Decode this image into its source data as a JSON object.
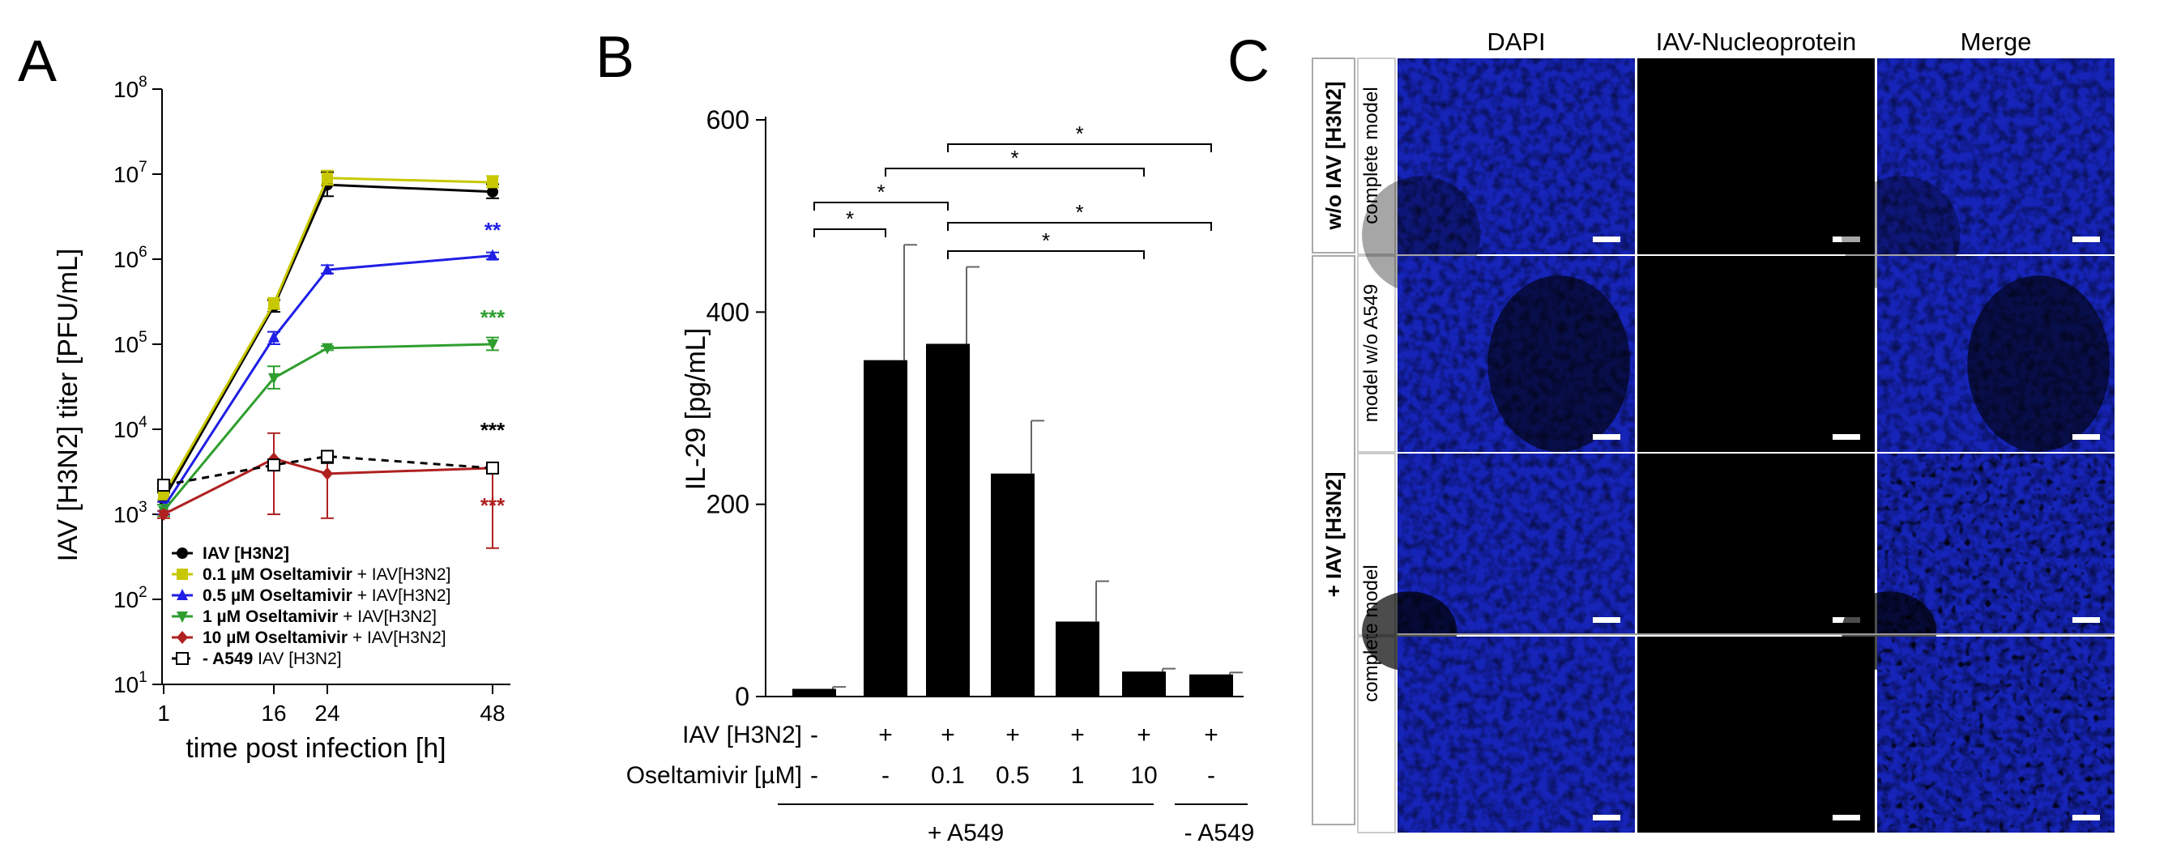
{
  "panels": {
    "A": {
      "letter": "A"
    },
    "B": {
      "letter": "B"
    },
    "C": {
      "letter": "C"
    }
  },
  "chart_data": [
    {
      "panel": "A",
      "type": "line",
      "x": [
        1,
        16,
        24,
        48
      ],
      "xlabel": "time post infection [h]",
      "ylabel": "IAV [H3N2] titer [PFU/mL]",
      "yscale": "log",
      "ylim": [
        10,
        100000000
      ],
      "yticks": [
        {
          "base": "10",
          "exp": "1"
        },
        {
          "base": "10",
          "exp": "2"
        },
        {
          "base": "10",
          "exp": "3"
        },
        {
          "base": "10",
          "exp": "4"
        },
        {
          "base": "10",
          "exp": "5"
        },
        {
          "base": "10",
          "exp": "6"
        },
        {
          "base": "10",
          "exp": "7"
        },
        {
          "base": "10",
          "exp": "8"
        }
      ],
      "xticks": [
        "1",
        "16",
        "24",
        "48"
      ],
      "series": [
        {
          "name_bold": "IAV [H3N2]",
          "name_rest": "",
          "color": "#000000",
          "marker": "circle",
          "dashed": false,
          "values": [
            1500,
            280000,
            7500000,
            6200000
          ],
          "err_hi": [
            1800,
            330000,
            10500000,
            7600000
          ],
          "err_lo": [
            1300,
            240000,
            5500000,
            5200000
          ]
        },
        {
          "name_bold": "0.1 µM Oseltamivir",
          "name_rest": " + IAV[H3N2]",
          "color": "#c8c800",
          "marker": "square",
          "dashed": false,
          "values": [
            1700,
            300000,
            9000000,
            8000000
          ],
          "err_hi": [
            2000,
            350000,
            11000000,
            9500000
          ],
          "err_lo": [
            1500,
            260000,
            7500000,
            7000000
          ]
        },
        {
          "name_bold": "0.5 µM Oseltamivir",
          "name_rest": " + IAV[H3N2]",
          "color": "#1f1fe6",
          "marker": "triangle",
          "dashed": false,
          "values": [
            1200,
            120000,
            750000,
            1100000
          ],
          "err_hi": [
            1400,
            140000,
            850000,
            1200000
          ],
          "err_lo": [
            1000,
            100000,
            680000,
            1000000
          ]
        },
        {
          "name_bold": "1 µM Oseltamivir",
          "name_rest": " + IAV[H3N2]",
          "color": "#2e9e2e",
          "marker": "triangle-down",
          "dashed": false,
          "values": [
            1100,
            40000,
            90000,
            100000
          ],
          "err_hi": [
            1300,
            55000,
            95000,
            120000
          ],
          "err_lo": [
            950,
            30000,
            85000,
            85000
          ]
        },
        {
          "name_bold": "10 µM Oseltamivir",
          "name_rest": " + IAV[H3N2]",
          "color": "#b02020",
          "marker": "diamond",
          "dashed": false,
          "values": [
            1000,
            4500,
            3000,
            3500
          ],
          "err_hi": [
            1100,
            9000,
            4500,
            3700
          ],
          "err_lo": [
            900,
            1000,
            900,
            400
          ]
        },
        {
          "name_bold": "- A549",
          "name_rest": " IAV [H3N2]",
          "color": "#000000",
          "marker": "open-square",
          "dashed": true,
          "values": [
            2200,
            3800,
            4800,
            3500
          ],
          "err_hi": [
            2400,
            4200,
            5600,
            3900
          ],
          "err_lo": [
            2000,
            3400,
            4000,
            3100
          ]
        }
      ],
      "annotations": [
        {
          "text": "**",
          "color": "#1f1fe6",
          "x": 48,
          "y": 1800000
        },
        {
          "text": "***",
          "color": "#2e9e2e",
          "x": 48,
          "y": 170000
        },
        {
          "text": "***",
          "color": "#000000",
          "x": 48,
          "y": 8000
        },
        {
          "text": "***",
          "color": "#b02020",
          "x": 48,
          "y": 1050
        }
      ]
    },
    {
      "panel": "B",
      "type": "bar",
      "ylabel": "IL-29 [pg/mL]",
      "ylim": [
        0,
        600
      ],
      "yticks": [
        "0",
        "200",
        "400",
        "600"
      ],
      "values": [
        8,
        350,
        367,
        232,
        78,
        26,
        23
      ],
      "errors": [
        2,
        120,
        80,
        55,
        42,
        3,
        2
      ],
      "row_labels": {
        "iav": "IAV [H3N2]",
        "osel": "Oseltamivir [µM]"
      },
      "iav_row": [
        "-",
        "+",
        "+",
        "+",
        "+",
        "+",
        "+"
      ],
      "osel_row": [
        "-",
        "-",
        "0.1",
        "0.5",
        "1",
        "10",
        "-"
      ],
      "groups": [
        {
          "label": "+ A549",
          "from": 0,
          "to": 5
        },
        {
          "label": "- A549",
          "from": 6,
          "to": 6
        }
      ],
      "significance": [
        {
          "from": 0,
          "to": 1,
          "label": "*"
        },
        {
          "from": 0,
          "to": 2,
          "label": "*"
        },
        {
          "from": 1,
          "to": 5,
          "label": "*"
        },
        {
          "from": 2,
          "to": 6,
          "label": "*"
        },
        {
          "from": 2,
          "to": 6,
          "label": "*"
        },
        {
          "from": 2,
          "to": 5,
          "label": "*"
        }
      ]
    }
  ],
  "micrographs": {
    "columns": [
      "DAPI",
      "IAV-Nucleoprotein",
      "Merge"
    ],
    "group_wo": "w/o IAV [H3N2]",
    "group_plus": "+ IAV [H3N2]",
    "rows": [
      {
        "label": "complete model",
        "group": "wo"
      },
      {
        "label": "model w/o A549",
        "group": "wo"
      },
      {
        "label": "complete model",
        "group": "plus"
      },
      {
        "label": "",
        "group": "plus"
      }
    ],
    "colors": {
      "dapi": "#1a2ad8",
      "np": "#d81818",
      "background": "#000000"
    }
  }
}
